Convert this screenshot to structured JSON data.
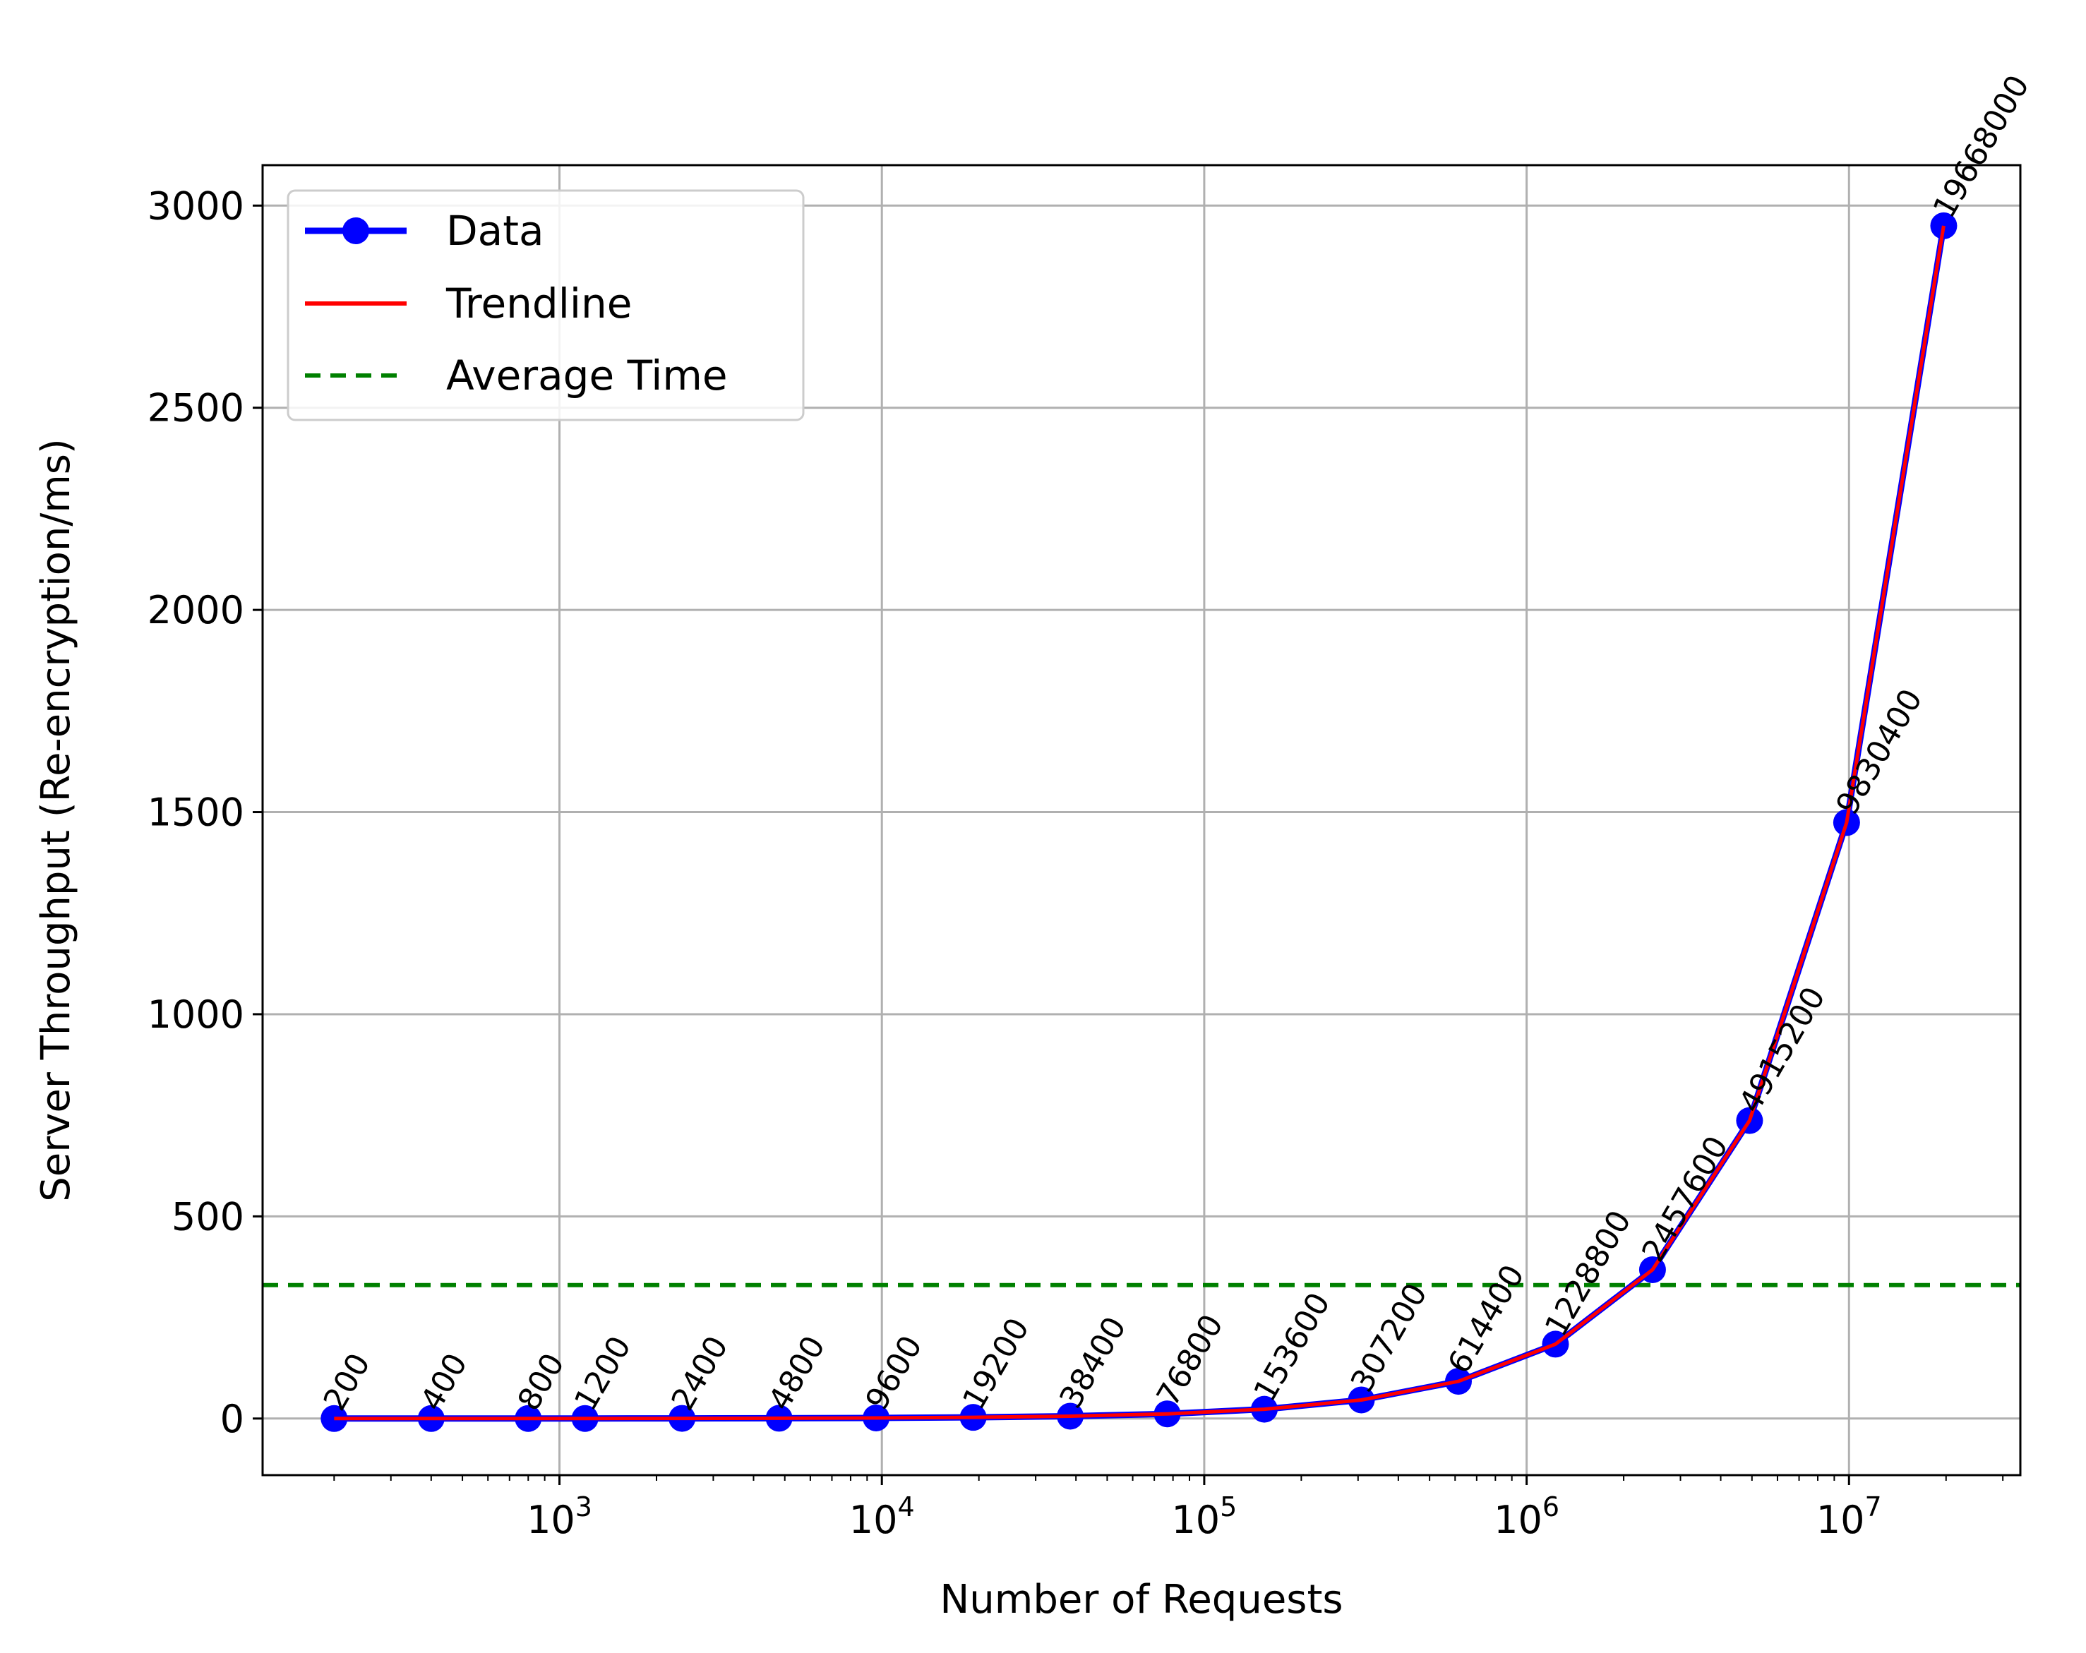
{
  "chart_data": {
    "type": "line",
    "xlabel": "Number of Requests",
    "ylabel": "Server Throughput (Re-encryption/ms)",
    "xscale": "log",
    "xlim": [
      120,
      34000000
    ],
    "ylim": [
      -140,
      3100
    ],
    "grid": true,
    "legend_position": "upper-left",
    "x": [
      200,
      400,
      800,
      1200,
      2400,
      4800,
      9600,
      19200,
      38400,
      76800,
      153600,
      307200,
      614400,
      1228800,
      2457600,
      4915200,
      9830400,
      19668000
    ],
    "series": [
      {
        "name": "Data",
        "style": "line-with-circle-markers",
        "color": "#0000ff",
        "values": [
          0.03,
          0.06,
          0.12,
          0.18,
          0.36,
          0.72,
          1.44,
          2.9,
          5.8,
          11.5,
          23,
          46,
          92,
          184,
          368,
          737,
          1474,
          2950
        ]
      },
      {
        "name": "Trendline",
        "style": "solid-line",
        "color": "#ff0000",
        "values": [
          0.03,
          0.06,
          0.12,
          0.18,
          0.36,
          0.72,
          1.44,
          2.9,
          5.8,
          11.5,
          23,
          46,
          92,
          184,
          368,
          737,
          1474,
          2950
        ]
      },
      {
        "name": "Average Time",
        "style": "dashed-horizontal",
        "color": "#008000",
        "value": 330
      }
    ],
    "point_labels": [
      "200",
      "400",
      "800",
      "1200",
      "2400",
      "4800",
      "9600",
      "19200",
      "38400",
      "76800",
      "153600",
      "307200",
      "614400",
      "1228800",
      "2457600",
      "4915200",
      "9830400",
      "19668000"
    ],
    "y_ticks": [
      {
        "value": 0,
        "label": "0"
      },
      {
        "value": 500,
        "label": "500"
      },
      {
        "value": 1000,
        "label": "1000"
      },
      {
        "value": 1500,
        "label": "1500"
      },
      {
        "value": 2000,
        "label": "2000"
      },
      {
        "value": 2500,
        "label": "2500"
      },
      {
        "value": 3000,
        "label": "3000"
      }
    ],
    "x_ticks": [
      {
        "value": 1000,
        "base": "10",
        "exp": "3"
      },
      {
        "value": 10000,
        "base": "10",
        "exp": "4"
      },
      {
        "value": 100000,
        "base": "10",
        "exp": "5"
      },
      {
        "value": 1000000,
        "base": "10",
        "exp": "6"
      },
      {
        "value": 10000000,
        "base": "10",
        "exp": "7"
      }
    ]
  }
}
